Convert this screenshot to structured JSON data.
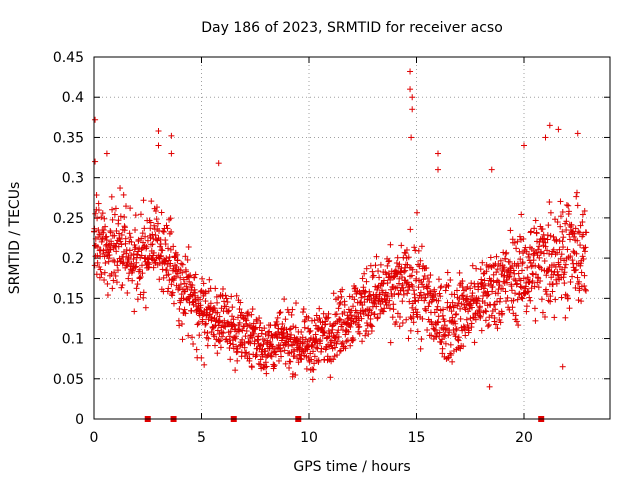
{
  "chart_data": {
    "type": "scatter",
    "title": "Day 186 of 2023, SRMTID for receiver acso",
    "xlabel": "GPS time / hours",
    "ylabel": "SRMTID / TECUs",
    "xlim": [
      0,
      24
    ],
    "ylim": [
      0,
      0.45
    ],
    "x_ticks": [
      "0",
      "5",
      "10",
      "15",
      "20"
    ],
    "y_ticks": [
      "0",
      "0.05",
      "0.1",
      "0.15",
      "0.2",
      "0.25",
      "0.3",
      "0.35",
      "0.4",
      "0.45"
    ],
    "grid": true,
    "marker": "plus",
    "color": "#e00000",
    "trend": {
      "x": [
        0,
        1,
        2,
        2.7,
        3.3,
        4,
        5,
        6,
        7,
        8,
        9,
        10,
        11,
        12,
        13,
        14,
        14.8,
        15.5,
        16,
        17,
        18,
        19,
        20,
        21,
        22,
        22.8
      ],
      "y": [
        0.22,
        0.21,
        0.2,
        0.22,
        0.21,
        0.17,
        0.13,
        0.12,
        0.11,
        0.09,
        0.1,
        0.09,
        0.11,
        0.13,
        0.15,
        0.16,
        0.17,
        0.15,
        0.12,
        0.13,
        0.15,
        0.17,
        0.18,
        0.2,
        0.21,
        0.2
      ]
    },
    "spread": {
      "x": [
        0,
        2,
        4,
        6,
        8,
        10,
        12,
        14,
        15,
        16,
        18,
        20,
        21.5,
        22.8
      ],
      "y": [
        0.04,
        0.04,
        0.035,
        0.03,
        0.025,
        0.025,
        0.03,
        0.035,
        0.045,
        0.035,
        0.035,
        0.04,
        0.05,
        0.045
      ]
    },
    "highlights": [
      {
        "x": 0.05,
        "y": 0.372
      },
      {
        "x": 0.05,
        "y": 0.32
      },
      {
        "x": 0.6,
        "y": 0.33
      },
      {
        "x": 3.0,
        "y": 0.358
      },
      {
        "x": 3.0,
        "y": 0.34
      },
      {
        "x": 3.6,
        "y": 0.352
      },
      {
        "x": 3.6,
        "y": 0.33
      },
      {
        "x": 5.8,
        "y": 0.318
      },
      {
        "x": 14.7,
        "y": 0.432
      },
      {
        "x": 14.7,
        "y": 0.41
      },
      {
        "x": 14.8,
        "y": 0.4
      },
      {
        "x": 14.8,
        "y": 0.385
      },
      {
        "x": 14.75,
        "y": 0.35
      },
      {
        "x": 16.0,
        "y": 0.33
      },
      {
        "x": 16.0,
        "y": 0.31
      },
      {
        "x": 18.4,
        "y": 0.04
      },
      {
        "x": 18.5,
        "y": 0.31
      },
      {
        "x": 20.0,
        "y": 0.34
      },
      {
        "x": 21.0,
        "y": 0.35
      },
      {
        "x": 21.2,
        "y": 0.365
      },
      {
        "x": 21.6,
        "y": 0.36
      },
      {
        "x": 22.5,
        "y": 0.355
      },
      {
        "x": 21.8,
        "y": 0.065
      }
    ],
    "gap_markers": {
      "x": [
        2.5,
        3.7,
        6.5,
        9.5,
        20.8
      ],
      "y": [
        0,
        0,
        0,
        0,
        0
      ]
    },
    "sample_step_hours": 0.012
  }
}
